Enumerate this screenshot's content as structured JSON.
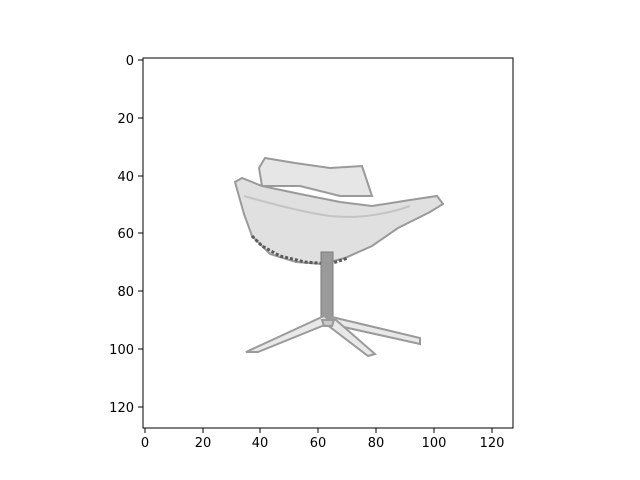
{
  "figure": {
    "subject": "office swivel chair, grayscale pixel image",
    "x_ticks": [
      "0",
      "20",
      "40",
      "60",
      "80",
      "100",
      "120"
    ],
    "y_ticks": [
      "0",
      "20",
      "40",
      "60",
      "80",
      "100",
      "120"
    ],
    "x_range": [
      -0.5,
      127.5
    ],
    "y_range": [
      127.5,
      -0.5
    ],
    "colors": {
      "background": "#ffffff",
      "axes": "#000000",
      "chair_fill": "#e2e2e2",
      "chair_edge": "#9a9a9a",
      "chair_dark": "#5a5a5a",
      "stem": "#8c8c8c"
    }
  }
}
